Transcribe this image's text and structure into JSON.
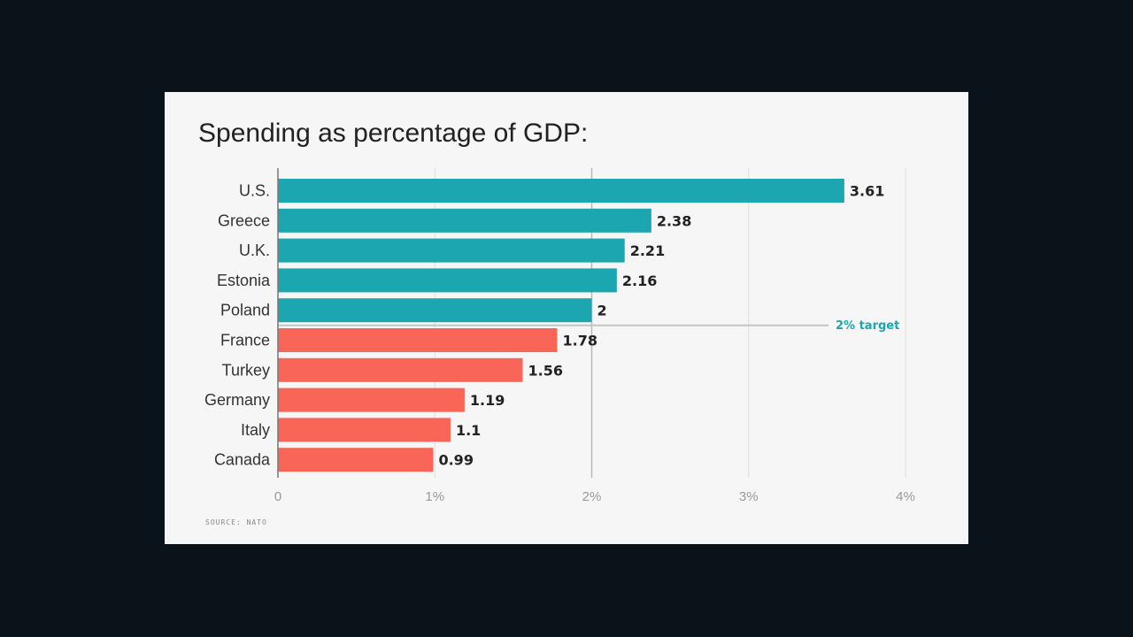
{
  "chart_data": {
    "type": "bar",
    "orientation": "horizontal",
    "title": "Spending as percentage of GDP:",
    "categories": [
      "U.S.",
      "Greece",
      "U.K.",
      "Estonia",
      "Poland",
      "France",
      "Turkey",
      "Germany",
      "Italy",
      "Canada"
    ],
    "values": [
      3.61,
      2.38,
      2.21,
      2.16,
      2,
      1.78,
      1.56,
      1.19,
      1.1,
      0.99
    ],
    "value_labels": [
      "3.61",
      "2.38",
      "2.21",
      "2.16",
      "2",
      "1.78",
      "1.56",
      "1.19",
      "1.1",
      "0.99"
    ],
    "xlim": [
      0,
      4
    ],
    "x_ticks": [
      0,
      1,
      2,
      3,
      4
    ],
    "x_tick_labels": [
      "0",
      "1%",
      "2%",
      "3%",
      "4%"
    ],
    "xlabel": "",
    "ylabel": "",
    "grid": true,
    "target": {
      "value": 2,
      "label": "2% target"
    },
    "colors": {
      "meets_target": "#1ba6b0",
      "below_target": "#f96557",
      "target_text": "#1ba6b0"
    },
    "source": "SOURCE: NATO"
  }
}
